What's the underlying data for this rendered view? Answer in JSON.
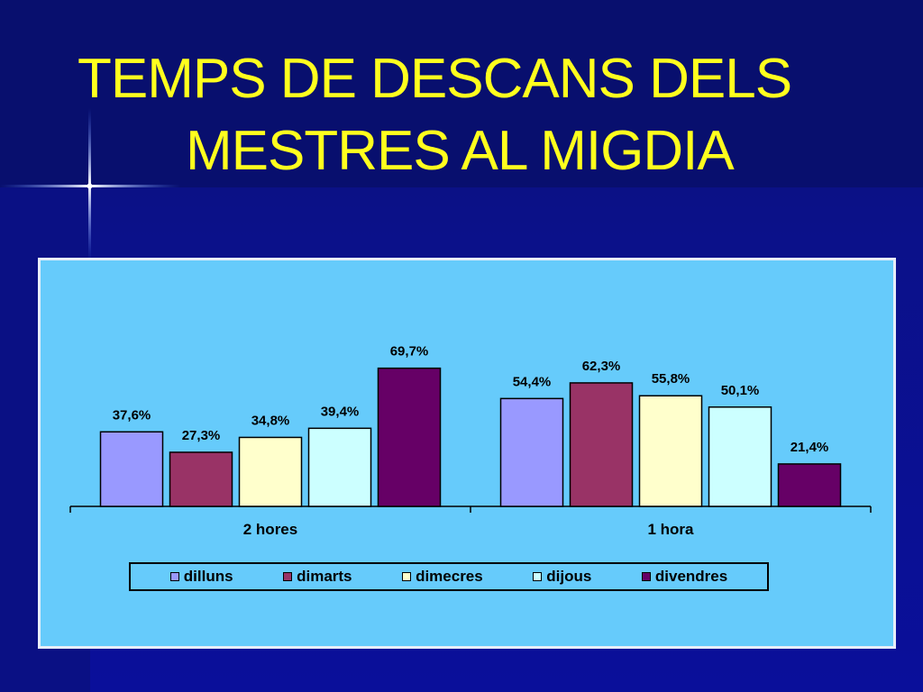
{
  "slide": {
    "title_line1": "TEMPS DE DESCANS DELS",
    "title_line2": "MESTRES AL MIGDIA"
  },
  "colors": {
    "background": "#0a0f88",
    "title": "#ffff1e",
    "plot_area": "#66cbfb"
  },
  "chart_data": {
    "type": "bar",
    "title": "",
    "xlabel": "",
    "ylabel": "",
    "categories": [
      "2 hores",
      "1 hora"
    ],
    "ylim": [
      0,
      80
    ],
    "grid": false,
    "legend_position": "bottom",
    "series": [
      {
        "name": "dilluns",
        "color": "#9999ff",
        "values": [
          37.6,
          54.4
        ],
        "labels": [
          "37,6%",
          "54,4%"
        ]
      },
      {
        "name": "dimarts",
        "color": "#993366",
        "values": [
          27.3,
          62.3
        ],
        "labels": [
          "27,3%",
          "62,3%"
        ]
      },
      {
        "name": "dimecres",
        "color": "#ffffcc",
        "values": [
          34.8,
          55.8
        ],
        "labels": [
          "34,8%",
          "55,8%"
        ]
      },
      {
        "name": "dijous",
        "color": "#ccffff",
        "values": [
          39.4,
          50.1
        ],
        "labels": [
          "39,4%",
          "50,1%"
        ]
      },
      {
        "name": "divendres",
        "color": "#660066",
        "values": [
          69.7,
          21.4
        ],
        "labels": [
          "69,7%",
          "21,4%"
        ]
      }
    ]
  }
}
